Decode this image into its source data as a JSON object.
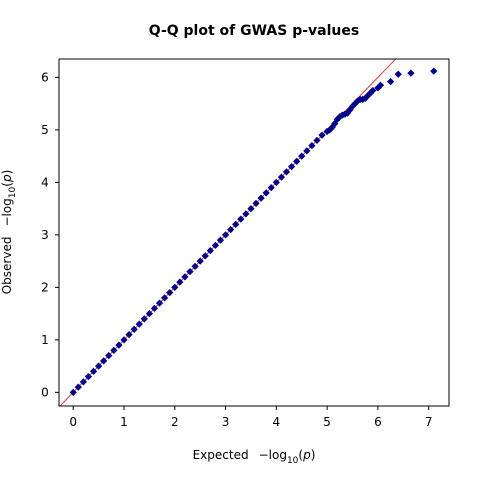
{
  "chart_data": {
    "type": "scatter",
    "title": "Q-Q plot of GWAS p-values",
    "xlabel": {
      "prefix": "Expected",
      "minus": "−log",
      "base": "10",
      "var": "p"
    },
    "ylabel": {
      "prefix": "Observed",
      "minus": "−log",
      "base": "10",
      "var": "p"
    },
    "xlim": [
      -0.28,
      7.4
    ],
    "ylim": [
      -0.26,
      6.35
    ],
    "xticks": [
      "0",
      "1",
      "2",
      "3",
      "4",
      "5",
      "6",
      "7"
    ],
    "yticks": [
      "0",
      "1",
      "2",
      "3",
      "4",
      "5",
      "6"
    ],
    "grid": false,
    "reference_line": {
      "slope": 1,
      "intercept": 0,
      "color": "#e8383d"
    },
    "marker_color": "#00008b",
    "points": [
      [
        0.0,
        0.0
      ],
      [
        0.1,
        0.1
      ],
      [
        0.2,
        0.2
      ],
      [
        0.3,
        0.3
      ],
      [
        0.4,
        0.4
      ],
      [
        0.5,
        0.5
      ],
      [
        0.6,
        0.6
      ],
      [
        0.7,
        0.7
      ],
      [
        0.8,
        0.8
      ],
      [
        0.9,
        0.9
      ],
      [
        1.0,
        1.0
      ],
      [
        1.1,
        1.1
      ],
      [
        1.2,
        1.2
      ],
      [
        1.3,
        1.3
      ],
      [
        1.4,
        1.4
      ],
      [
        1.5,
        1.5
      ],
      [
        1.6,
        1.6
      ],
      [
        1.7,
        1.7
      ],
      [
        1.8,
        1.8
      ],
      [
        1.9,
        1.9
      ],
      [
        2.0,
        2.0
      ],
      [
        2.1,
        2.1
      ],
      [
        2.2,
        2.2
      ],
      [
        2.3,
        2.3
      ],
      [
        2.4,
        2.4
      ],
      [
        2.5,
        2.5
      ],
      [
        2.6,
        2.6
      ],
      [
        2.7,
        2.7
      ],
      [
        2.8,
        2.8
      ],
      [
        2.9,
        2.9
      ],
      [
        3.0,
        3.0
      ],
      [
        3.1,
        3.1
      ],
      [
        3.2,
        3.2
      ],
      [
        3.3,
        3.3
      ],
      [
        3.4,
        3.4
      ],
      [
        3.5,
        3.5
      ],
      [
        3.6,
        3.6
      ],
      [
        3.7,
        3.7
      ],
      [
        3.8,
        3.8
      ],
      [
        3.9,
        3.9
      ],
      [
        4.0,
        4.0
      ],
      [
        4.1,
        4.1
      ],
      [
        4.2,
        4.2
      ],
      [
        4.3,
        4.3
      ],
      [
        4.4,
        4.4
      ],
      [
        4.5,
        4.5
      ],
      [
        4.6,
        4.6
      ],
      [
        4.7,
        4.7
      ],
      [
        4.8,
        4.8
      ],
      [
        4.9,
        4.9
      ],
      [
        5.0,
        4.97
      ],
      [
        5.05,
        5.0
      ],
      [
        5.1,
        5.05
      ],
      [
        5.15,
        5.12
      ],
      [
        5.2,
        5.2
      ],
      [
        5.25,
        5.25
      ],
      [
        5.3,
        5.28
      ],
      [
        5.35,
        5.3
      ],
      [
        5.4,
        5.32
      ],
      [
        5.45,
        5.38
      ],
      [
        5.5,
        5.45
      ],
      [
        5.55,
        5.5
      ],
      [
        5.6,
        5.55
      ],
      [
        5.65,
        5.58
      ],
      [
        5.7,
        5.58
      ],
      [
        5.75,
        5.6
      ],
      [
        5.8,
        5.65
      ],
      [
        5.85,
        5.7
      ],
      [
        5.9,
        5.75
      ],
      [
        6.0,
        5.8
      ],
      [
        6.05,
        5.85
      ],
      [
        6.25,
        5.92
      ],
      [
        6.4,
        6.06
      ],
      [
        6.65,
        6.08
      ],
      [
        7.1,
        6.12
      ]
    ]
  }
}
